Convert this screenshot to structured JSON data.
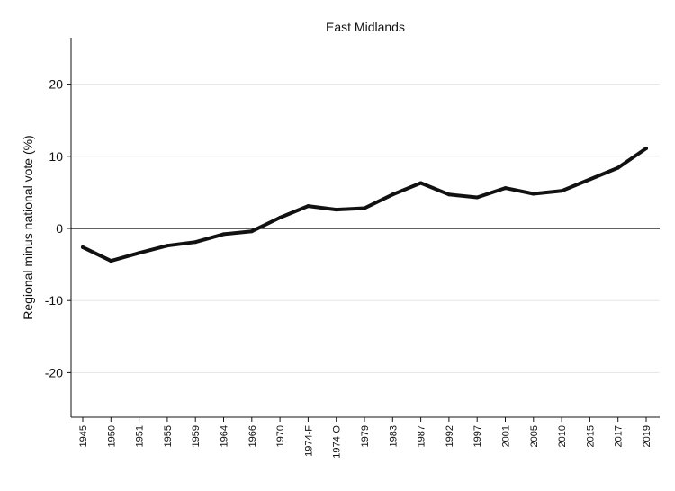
{
  "chart_data": {
    "type": "line",
    "title": "East Midlands",
    "xlabel": "",
    "ylabel": "Regional minus national vote (%)",
    "categories": [
      "1945",
      "1950",
      "1951",
      "1955",
      "1959",
      "1964",
      "1966",
      "1970",
      "1974-F",
      "1974-O",
      "1979",
      "1983",
      "1987",
      "1992",
      "1997",
      "2001",
      "2005",
      "2010",
      "2015",
      "2017",
      "2019"
    ],
    "series": [
      {
        "values": [
          -2.6,
          -4.5,
          -3.4,
          -2.4,
          -1.9,
          -0.8,
          -0.4,
          1.5,
          3.1,
          2.6,
          2.8,
          4.7,
          6.3,
          4.7,
          4.3,
          5.6,
          4.8,
          5.2,
          6.8,
          8.4,
          11.1
        ]
      }
    ],
    "yticks": [
      -20,
      -10,
      0,
      10,
      20
    ],
    "ylim": [
      -26,
      26
    ],
    "grid": true,
    "reference_line": 0,
    "legend": "none"
  }
}
